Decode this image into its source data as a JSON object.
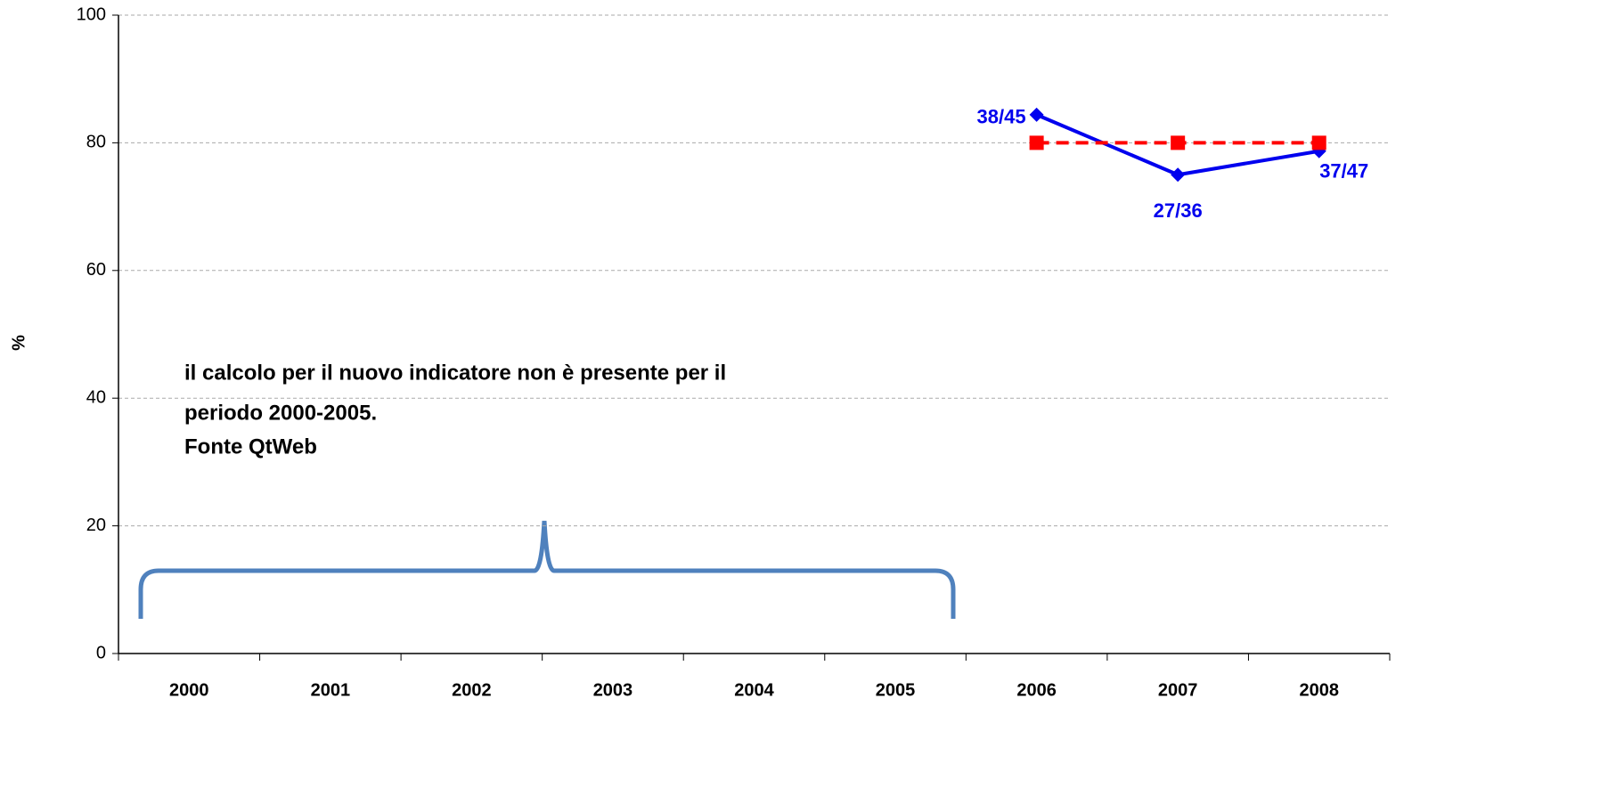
{
  "chart_data": {
    "type": "line",
    "ylabel": "%",
    "categories": [
      "2000",
      "2001",
      "2002",
      "2003",
      "2004",
      "2005",
      "2006",
      "2007",
      "2008"
    ],
    "series": [
      {
        "color": "#0000ee",
        "marker": "diamond",
        "dashed": false,
        "values": [
          null,
          null,
          null,
          null,
          null,
          null,
          84.4,
          75,
          78.7
        ],
        "value_labels": [
          null,
          null,
          null,
          null,
          null,
          null,
          "38/45",
          "27/36",
          "37/47"
        ]
      },
      {
        "color": "#ff0000",
        "marker": "square",
        "dashed": true,
        "values": [
          null,
          null,
          null,
          null,
          null,
          null,
          80,
          80,
          80
        ]
      }
    ],
    "annotation": [
      "il calcolo per il nuovo indicatore non è presente per il",
      "periodo 2000-2005.",
      "Fonte QtWeb"
    ],
    "ylim": [
      0,
      100
    ],
    "yticks": [
      0,
      20,
      40,
      60,
      80,
      100
    ],
    "grid": true
  }
}
